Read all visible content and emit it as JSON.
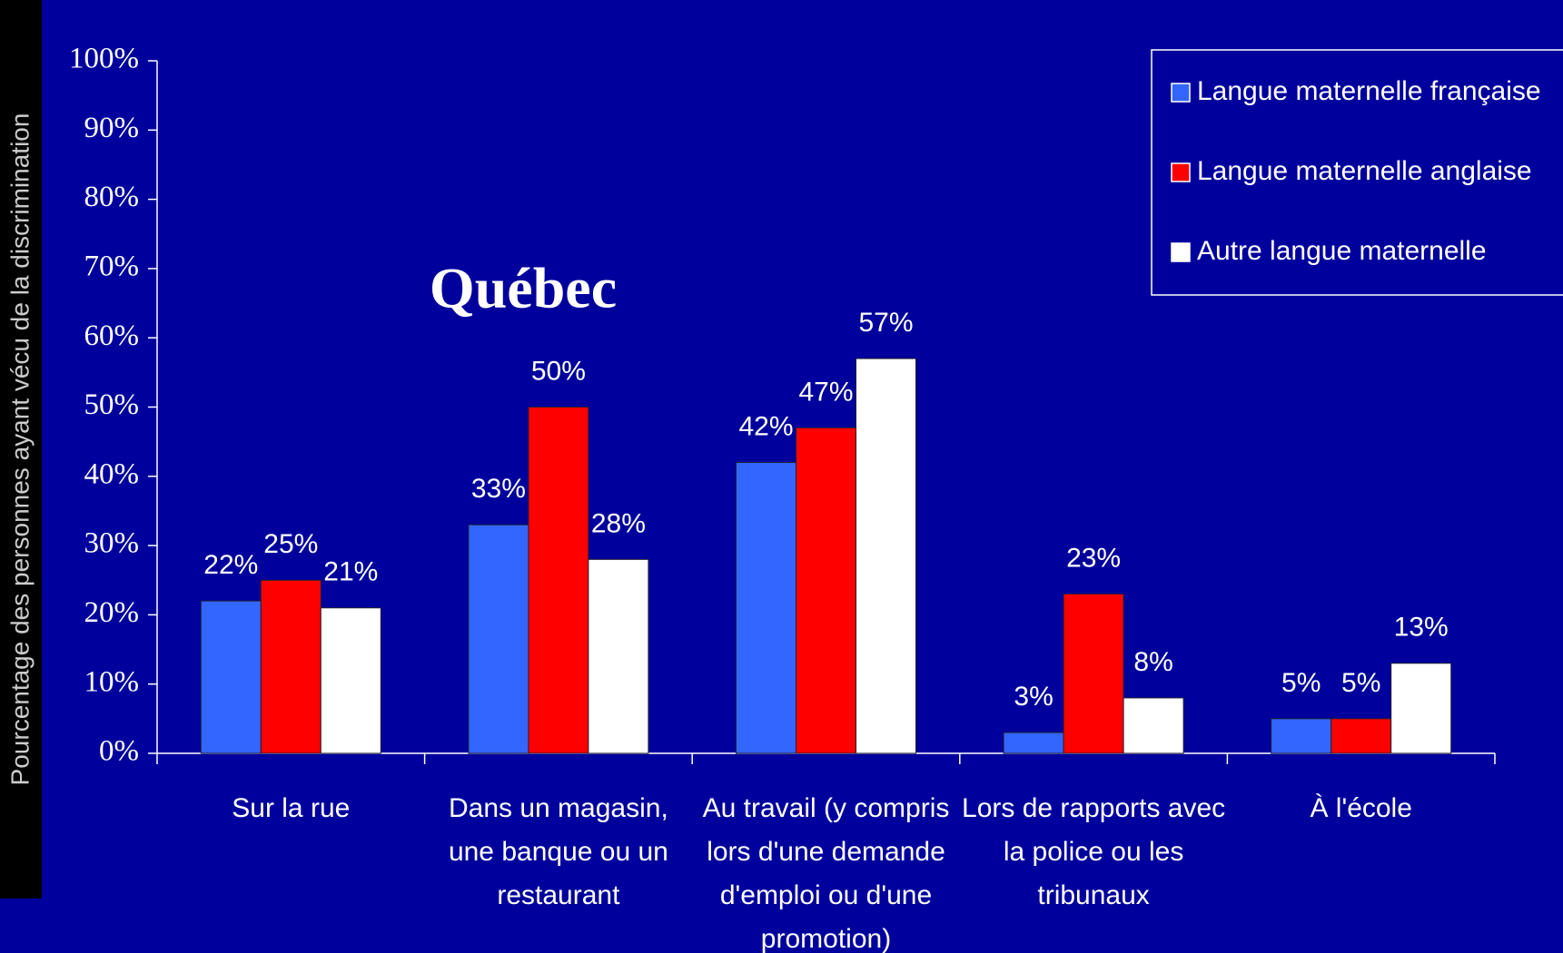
{
  "chart_data": {
    "type": "bar",
    "title": "Québec",
    "y_label": "Pourcentage des personnes ayant vécu de la discrimination",
    "categories": [
      "Sur la rue",
      "Dans un magasin, une banque ou un restaurant",
      "Au travail (y compris lors d'une demande d'emploi ou d'une promotion)",
      "Lors de rapports avec la police ou les tribunaux",
      "À l'école"
    ],
    "series": [
      {
        "name": "Langue maternelle française",
        "color": "#3366ff",
        "values": [
          22,
          33,
          42,
          3,
          5
        ],
        "value_labels": [
          "22%",
          "33%",
          "42%",
          "3%",
          "5%"
        ]
      },
      {
        "name": "Langue maternelle anglaise",
        "color": "#ff0000",
        "values": [
          25,
          50,
          47,
          23,
          5
        ],
        "value_labels": [
          "25%",
          "50%",
          "47%",
          "23%",
          "5%"
        ]
      },
      {
        "name": "Autre langue maternelle",
        "color": "#ffffff",
        "values": [
          21,
          28,
          57,
          8,
          13
        ],
        "value_labels": [
          "21%",
          "28%",
          "57%",
          "8%",
          "13%"
        ]
      }
    ],
    "ylim": [
      0,
      100
    ],
    "yticks": [
      {
        "value": 0,
        "label": "0%"
      },
      {
        "value": 10,
        "label": "10%"
      },
      {
        "value": 20,
        "label": "20%"
      },
      {
        "value": 30,
        "label": "30%"
      },
      {
        "value": 40,
        "label": "40%"
      },
      {
        "value": 50,
        "label": "50%"
      },
      {
        "value": 60,
        "label": "60%"
      },
      {
        "value": 70,
        "label": "70%"
      },
      {
        "value": 80,
        "label": "80%"
      },
      {
        "value": 90,
        "label": "90%"
      },
      {
        "value": 100,
        "label": "100%"
      }
    ],
    "legend": "top-right"
  }
}
